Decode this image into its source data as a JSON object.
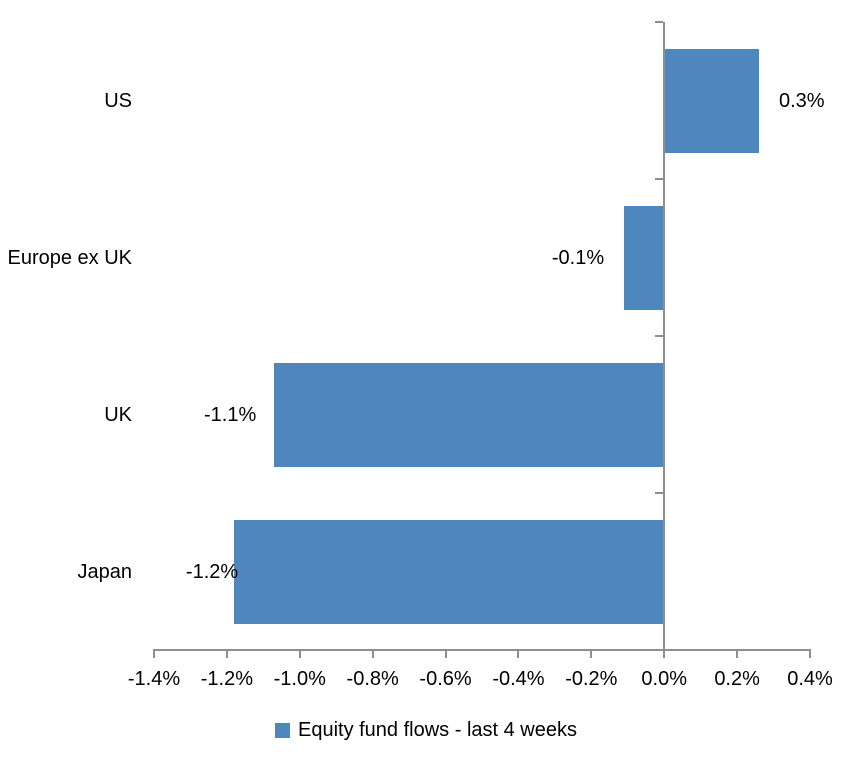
{
  "chart_data": {
    "type": "bar",
    "orientation": "horizontal",
    "title": "",
    "xlabel": "",
    "ylabel": "",
    "categories": [
      "US",
      "Europe ex UK",
      "UK",
      "Japan"
    ],
    "series": [
      {
        "name": "Equity fund flows - last 4 weeks",
        "values": [
          0.3,
          -0.1,
          -1.1,
          -1.2
        ],
        "plot_values": [
          0.26,
          -0.11,
          -1.07,
          -1.18
        ],
        "data_labels": [
          "0.3%",
          "-0.1%",
          "-1.1%",
          "-1.2%"
        ]
      }
    ],
    "xlim": [
      -1.4,
      0.4
    ],
    "x_tick_values": [
      -1.4,
      -1.2,
      -1.0,
      -0.8,
      -0.6,
      -0.4,
      -0.2,
      0.0,
      0.2,
      0.4
    ],
    "x_tick_labels": [
      "-1.4%",
      "-1.2%",
      "-1.0%",
      "-0.8%",
      "-0.6%",
      "-0.4%",
      "-0.2%",
      "0.0%",
      "0.2%",
      "0.4%"
    ],
    "grid": false,
    "legend": {
      "label": "Equity fund flows - last 4 weeks",
      "position": "bottom",
      "marker_color": "#4E86BE"
    },
    "colors": {
      "bar": "#4E86BE",
      "axis": "#8E8E8E",
      "text": "#000000",
      "background": "#FFFFFF"
    }
  }
}
